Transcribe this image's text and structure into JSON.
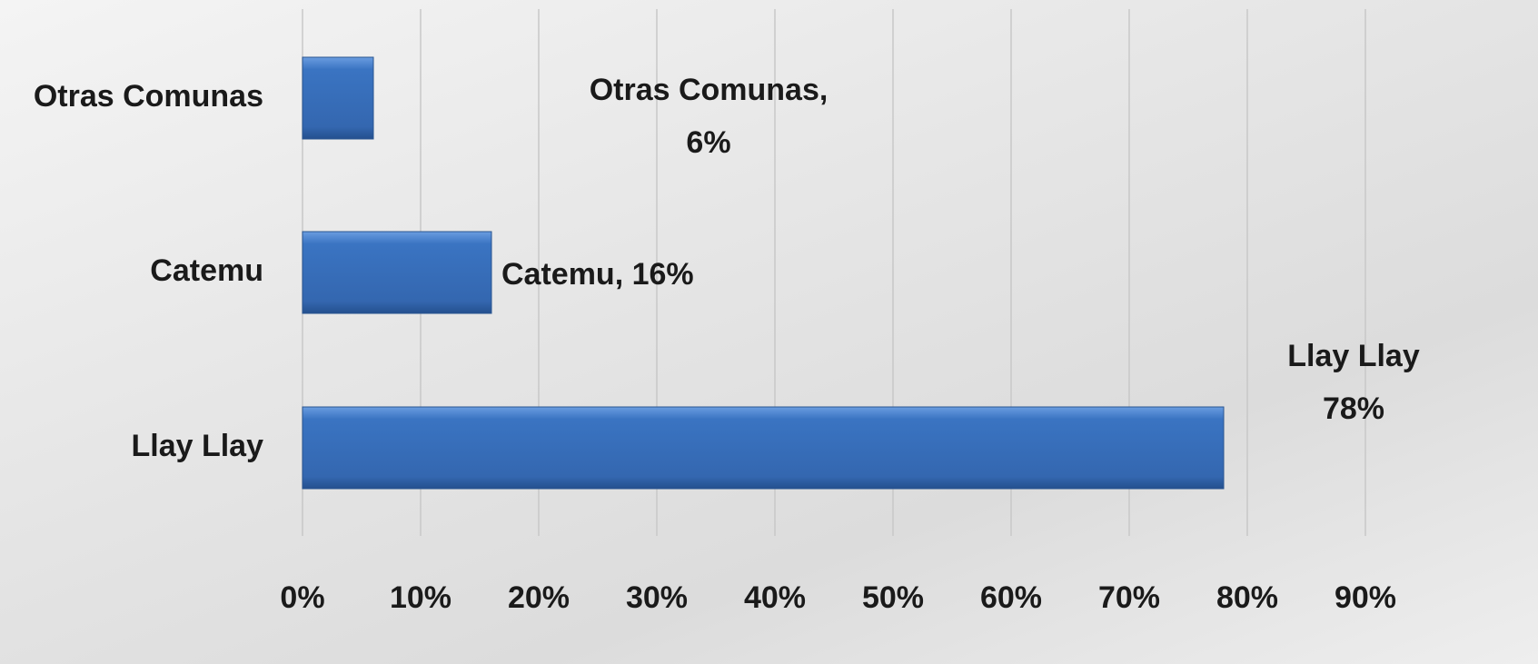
{
  "chart_data": {
    "type": "hbar",
    "categories": [
      "Otras Comunas",
      "Catemu",
      "Llay Llay"
    ],
    "values": [
      6,
      16,
      78
    ],
    "value_labels": [
      "Otras Comunas, 6%",
      "Catemu, 16%",
      "Llay Llay 78%"
    ],
    "color": "#3a74c2",
    "xlim": [
      0,
      90
    ],
    "xticks": [
      {
        "value": 0,
        "label": "0%"
      },
      {
        "value": 10,
        "label": "10%"
      },
      {
        "value": 20,
        "label": "20%"
      },
      {
        "value": 30,
        "label": "30%"
      },
      {
        "value": 40,
        "label": "40%"
      },
      {
        "value": 50,
        "label": "50%"
      },
      {
        "value": 60,
        "label": "60%"
      },
      {
        "value": 70,
        "label": "70%"
      },
      {
        "value": 80,
        "label": "80%"
      },
      {
        "value": 90,
        "label": "90%"
      }
    ],
    "grid": true
  }
}
